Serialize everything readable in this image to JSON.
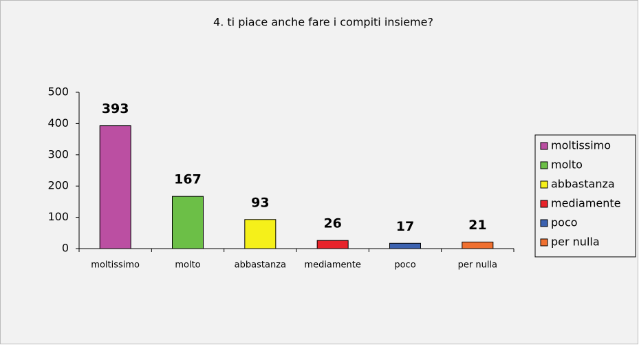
{
  "chart_data": {
    "type": "bar",
    "title": "4. ti piace anche fare i compiti insieme?",
    "categories": [
      "moltissimo",
      "molto",
      "abbastanza",
      "mediamente",
      "poco",
      "per nulla"
    ],
    "values": [
      393,
      167,
      93,
      26,
      17,
      21
    ],
    "colors": [
      "#bb4fa2",
      "#6cbf47",
      "#f5f01a",
      "#e8232a",
      "#3c62b0",
      "#f07030"
    ],
    "ylim": [
      0,
      500
    ],
    "yticks": [
      0,
      100,
      200,
      300,
      400,
      500
    ],
    "grid": false,
    "legend": "right"
  }
}
